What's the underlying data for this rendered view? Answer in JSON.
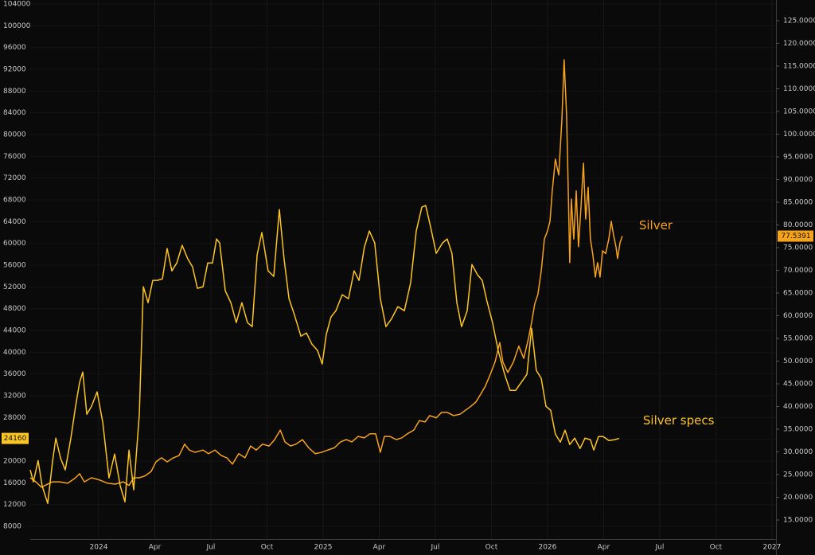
{
  "chart_data": {
    "type": "line",
    "xlim": [
      2023.695,
      2027.018
    ],
    "xticks": [
      2024,
      {
        "value": 2024.25,
        "label": "Apr"
      },
      {
        "value": 2024.5,
        "label": "Jul"
      },
      {
        "value": 2024.75,
        "label": "Oct"
      },
      2025,
      {
        "value": 2025.25,
        "label": "Apr"
      },
      {
        "value": 2025.5,
        "label": "Jul"
      },
      {
        "value": 2025.75,
        "label": "Oct"
      },
      2026,
      {
        "value": 2026.25,
        "label": "Apr"
      },
      {
        "value": 2026.5,
        "label": "Jul"
      },
      {
        "value": 2026.75,
        "label": "Oct"
      },
      2027
    ],
    "ylim": [
      5660,
      104730
    ],
    "yticks": [
      8000,
      12000,
      16000,
      20000,
      24000,
      28000,
      32000,
      36000,
      40000,
      44000,
      48000,
      52000,
      56000,
      60000,
      64000,
      68000,
      72000,
      76000,
      80000,
      84000,
      88000,
      92000,
      96000,
      100000,
      104000
    ],
    "y2lim": [
      10.79,
      129.56
    ],
    "y2ticks": [
      {
        "value": 15,
        "label": "15.0000"
      },
      {
        "value": 20,
        "label": "20.0000"
      },
      {
        "value": 25,
        "label": "25.0000"
      },
      {
        "value": 30,
        "label": "30.0000"
      },
      {
        "value": 35,
        "label": "35.0000"
      },
      {
        "value": 40,
        "label": "40.0000"
      },
      {
        "value": 45,
        "label": "45.0000"
      },
      {
        "value": 50,
        "label": "50.0000"
      },
      {
        "value": 55,
        "label": "55.0000"
      },
      {
        "value": 60,
        "label": "60.0000"
      },
      {
        "value": 65,
        "label": "65.0000"
      },
      {
        "value": 70,
        "label": "70.0000"
      },
      {
        "value": 75,
        "label": "75.0000"
      },
      {
        "value": 80,
        "label": "80.0000"
      },
      {
        "value": 85,
        "label": "85.0000"
      },
      {
        "value": 90,
        "label": "90.0000"
      },
      {
        "value": 95,
        "label": "95.0000"
      },
      {
        "value": 100,
        "label": "100.0000"
      },
      {
        "value": 105,
        "label": "105.0000"
      },
      {
        "value": 110,
        "label": "110.0000"
      },
      {
        "value": 115,
        "label": "115.0000"
      },
      {
        "value": 120,
        "label": "120.0000"
      },
      {
        "value": 125,
        "label": "125.0000"
      }
    ],
    "grid": true,
    "series": [
      {
        "name": "Silver",
        "color": "#f7a21b",
        "axis": "y2",
        "x": [
          2023.695,
          2023.72,
          2023.745,
          2023.773,
          2023.794,
          2023.826,
          2023.862,
          2023.897,
          2023.915,
          2023.936,
          2023.968,
          2024.004,
          2024.039,
          2024.074,
          2024.11,
          2024.135,
          2024.156,
          2024.181,
          2024.206,
          2024.234,
          2024.255,
          2024.28,
          2024.305,
          2024.333,
          2024.358,
          2024.383,
          2024.404,
          2024.429,
          2024.465,
          2024.489,
          2024.518,
          2024.546,
          2024.571,
          2024.596,
          2024.624,
          2024.652,
          2024.677,
          2024.702,
          2024.73,
          2024.759,
          2024.784,
          2024.809,
          2024.83,
          2024.855,
          2024.879,
          2024.908,
          2024.936,
          2024.965,
          2024.993,
          2025.021,
          2025.05,
          2025.078,
          2025.103,
          2025.128,
          2025.156,
          2025.184,
          2025.209,
          2025.234,
          2025.255,
          2025.273,
          2025.298,
          2025.326,
          2025.351,
          2025.376,
          2025.404,
          2025.429,
          2025.454,
          2025.475,
          2025.504,
          2025.528,
          2025.553,
          2025.582,
          2025.61,
          2025.635,
          2025.66,
          2025.681,
          2025.702,
          2025.723,
          2025.745,
          2025.766,
          2025.787,
          2025.801,
          2025.823,
          2025.848,
          2025.872,
          2025.894,
          2025.915,
          2025.929,
          2025.943,
          2025.957,
          2025.972,
          2025.986,
          2026.0,
          2026.011,
          2026.021,
          2026.035,
          2026.05,
          2026.064,
          2026.074,
          2026.085,
          2026.092,
          2026.099,
          2026.106,
          2026.117,
          2026.128,
          2026.138,
          2026.149,
          2026.16,
          2026.17,
          2026.181,
          2026.191,
          2026.202,
          2026.213,
          2026.223,
          2026.234,
          2026.245,
          2026.259,
          2026.273,
          2026.284,
          2026.294,
          2026.305,
          2026.312,
          2026.323,
          2026.333
        ],
        "values": [
          24.3,
          23.4,
          22.2,
          22.9,
          23.4,
          23.4,
          23.1,
          24.3,
          25.2,
          23.4,
          24.3,
          23.8,
          23.1,
          22.9,
          23.4,
          22.6,
          24.3,
          24.3,
          24.7,
          25.7,
          27.8,
          28.7,
          27.8,
          28.7,
          29.2,
          31.7,
          30.4,
          29.9,
          30.4,
          29.6,
          30.4,
          29.2,
          28.7,
          27.3,
          29.6,
          28.7,
          31.3,
          30.4,
          31.7,
          31.3,
          32.7,
          34.8,
          32.2,
          31.3,
          31.7,
          32.7,
          30.9,
          29.6,
          29.9,
          30.4,
          30.9,
          32.2,
          32.7,
          32.2,
          33.4,
          33.1,
          34.0,
          34.0,
          29.9,
          33.4,
          33.4,
          32.7,
          33.1,
          34.0,
          34.8,
          36.9,
          36.6,
          38.0,
          37.5,
          38.7,
          38.7,
          38.0,
          38.3,
          39.2,
          40.1,
          41.0,
          42.7,
          44.5,
          47.1,
          49.8,
          54.1,
          49.8,
          47.5,
          49.8,
          53.3,
          50.6,
          55.0,
          58.5,
          62.6,
          64.7,
          69.9,
          76.9,
          78.7,
          80.8,
          87.5,
          94.5,
          91.0,
          103.3,
          116.4,
          104.1,
          88.3,
          71.7,
          85.7,
          76.9,
          87.5,
          75.2,
          83.9,
          93.6,
          81.3,
          88.3,
          76.9,
          73.4,
          68.5,
          71.7,
          68.5,
          74.3,
          73.7,
          76.9,
          80.8,
          77.8,
          75.2,
          72.6,
          76.1,
          77.5391
        ]
      },
      {
        "name": "Silver specs",
        "color": "#fcc521",
        "axis": "y",
        "x": [
          2023.695,
          2023.709,
          2023.73,
          2023.748,
          2023.773,
          2023.794,
          2023.809,
          2023.83,
          2023.851,
          2023.876,
          2023.897,
          2023.915,
          2023.929,
          2023.947,
          2023.968,
          2023.993,
          2024.018,
          2024.046,
          2024.071,
          2024.096,
          2024.117,
          2024.135,
          2024.156,
          2024.181,
          2024.199,
          2024.22,
          2024.241,
          2024.262,
          2024.284,
          2024.305,
          2024.326,
          2024.348,
          2024.372,
          2024.397,
          2024.418,
          2024.44,
          2024.465,
          2024.486,
          2024.507,
          2024.525,
          2024.539,
          2024.564,
          2024.589,
          2024.613,
          2024.638,
          2024.663,
          2024.684,
          2024.706,
          2024.727,
          2024.755,
          2024.78,
          2024.805,
          2024.826,
          2024.848,
          2024.872,
          2024.901,
          2024.926,
          2024.95,
          2024.975,
          2024.996,
          2025.014,
          2025.035,
          2025.057,
          2025.085,
          2025.113,
          2025.138,
          2025.16,
          2025.184,
          2025.206,
          2025.23,
          2025.255,
          2025.28,
          2025.305,
          2025.333,
          2025.362,
          2025.39,
          2025.415,
          2025.44,
          2025.457,
          2025.479,
          2025.504,
          2025.532,
          2025.553,
          2025.574,
          2025.596,
          2025.617,
          2025.642,
          2025.663,
          2025.688,
          2025.709,
          2025.73,
          2025.755,
          2025.78,
          2025.809,
          2025.833,
          2025.858,
          2025.883,
          2025.908,
          2025.929,
          2025.95,
          2025.972,
          2025.993,
          2026.014,
          2026.035,
          2026.057,
          2026.078,
          2026.099,
          2026.121,
          2026.145,
          2026.167,
          2026.191,
          2026.206,
          2026.227,
          2026.248,
          2026.273,
          2026.298,
          2026.319
        ],
        "values": [
          18360,
          16160,
          20100,
          15430,
          12210,
          19820,
          24210,
          20550,
          18360,
          24210,
          30060,
          34460,
          36360,
          28600,
          30060,
          32710,
          27140,
          16890,
          21280,
          15430,
          12500,
          22020,
          14700,
          28600,
          52030,
          49100,
          53200,
          53200,
          53490,
          59060,
          54950,
          56410,
          59640,
          57150,
          55690,
          51740,
          52030,
          56410,
          56410,
          60810,
          60080,
          51300,
          49100,
          45440,
          49100,
          45440,
          44700,
          57880,
          62000,
          54950,
          53930,
          66230,
          57150,
          49830,
          46900,
          42950,
          43540,
          41490,
          40320,
          37830,
          43250,
          46460,
          47630,
          50560,
          49830,
          54950,
          53200,
          59350,
          62280,
          60080,
          49830,
          44700,
          46160,
          48370,
          47630,
          52760,
          62280,
          66670,
          66960,
          63010,
          58180,
          60080,
          60810,
          58180,
          49100,
          44700,
          47630,
          56120,
          54220,
          53200,
          49390,
          45440,
          40320,
          35920,
          32990,
          32990,
          34460,
          35920,
          44410,
          36660,
          35190,
          30060,
          29330,
          24940,
          23480,
          25670,
          23040,
          24210,
          22310,
          24210,
          23920,
          22020,
          24500,
          24500,
          23770,
          23920,
          24160
        ]
      }
    ]
  }
}
